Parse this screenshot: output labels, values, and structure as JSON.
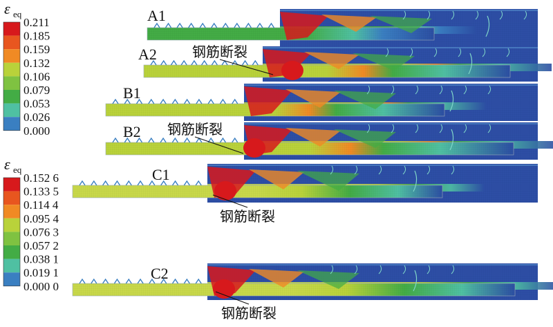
{
  "legend_top": {
    "symbol": "ε",
    "subscript": "eq",
    "values": [
      "0.211",
      "0.185",
      "0.159",
      "0.132",
      "0.106",
      "0.079",
      "0.053",
      "0.026",
      "0.000"
    ]
  },
  "legend_bottom": {
    "symbol": "ε",
    "subscript": "eq",
    "values": [
      "0.152 6",
      "0.133 5",
      "0.114 4",
      "0.095 4",
      "0.076 3",
      "0.057 2",
      "0.038 1",
      "0.019 1",
      "0.000 0"
    ]
  },
  "colors": {
    "scale": [
      "#d7191c",
      "#e8561f",
      "#f08a24",
      "#b9d23a",
      "#7fc241",
      "#43ac45",
      "#4fc0a2",
      "#3a7fc1",
      "#2c4ea3"
    ],
    "concrete": "#2d4ea5",
    "steel_bar": "#c8d84a",
    "crack": "#7fd6c8"
  },
  "specimens": [
    {
      "id": "A1",
      "label": "A1",
      "fracture_text": ""
    },
    {
      "id": "A2",
      "label": "A2",
      "fracture_text": "钢筋断裂"
    },
    {
      "id": "B1",
      "label": "B1",
      "fracture_text": ""
    },
    {
      "id": "B2",
      "label": "B2",
      "fracture_text": "钢筋断裂"
    },
    {
      "id": "C1",
      "label": "C1",
      "fracture_text": "钢筋断裂"
    },
    {
      "id": "C2",
      "label": "C2",
      "fracture_text": "钢筋断裂"
    }
  ]
}
